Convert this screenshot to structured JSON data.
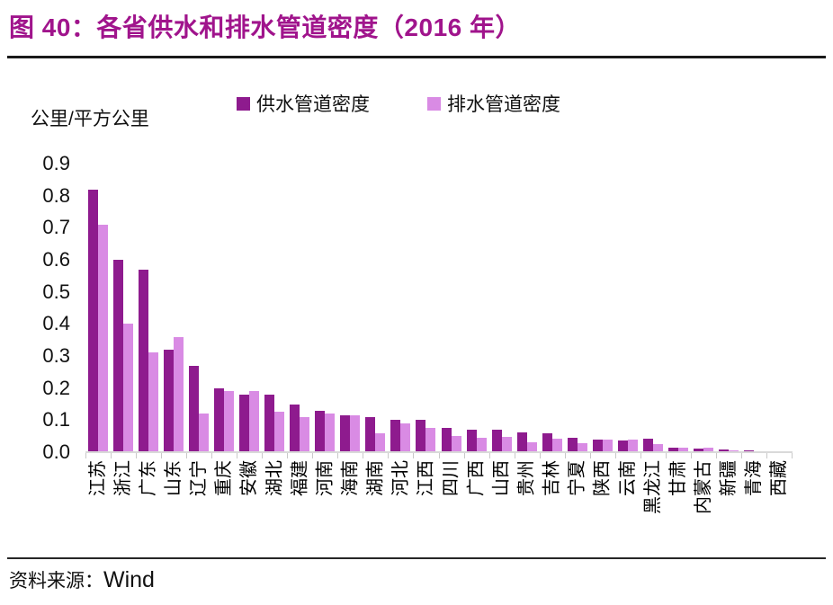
{
  "figure": {
    "title": "图 40：各省供水和排水管道密度（2016 年）",
    "unit_label": "公里/平方公里",
    "source": {
      "prefix": "资料来源：",
      "value": "Wind"
    }
  },
  "colors": {
    "title": "#a0148c",
    "supply_bar": "#8e1b8e",
    "drain_bar": "#d98be4",
    "divider": "#1a1a1a",
    "axis_line": "#d9d9d9",
    "axis_tick": "#c9c9c9"
  },
  "chart_data": {
    "type": "bar",
    "title": "各省供水和排水管道密度（2016 年）",
    "xlabel": "",
    "ylabel": "公里/平方公里",
    "ylim": [
      0,
      0.9
    ],
    "yticks": [
      0.0,
      0.1,
      0.2,
      0.3,
      0.4,
      0.5,
      0.6,
      0.7,
      0.8,
      0.9
    ],
    "grid": false,
    "legend_position": "top",
    "categories": [
      "江苏",
      "浙江",
      "广东",
      "山东",
      "辽宁",
      "重庆",
      "安徽",
      "湖北",
      "福建",
      "河南",
      "海南",
      "湖南",
      "河北",
      "江西",
      "四川",
      "广西",
      "山西",
      "贵州",
      "吉林",
      "宁夏",
      "陕西",
      "云南",
      "黑龙江",
      "甘肃",
      "内蒙古",
      "新疆",
      "青海",
      "西藏"
    ],
    "series": [
      {
        "name": "供水管道密度",
        "color": "#8e1b8e",
        "values": [
          0.82,
          0.6,
          0.57,
          0.32,
          0.27,
          0.2,
          0.18,
          0.18,
          0.15,
          0.13,
          0.115,
          0.11,
          0.1,
          0.1,
          0.075,
          0.07,
          0.07,
          0.062,
          0.058,
          0.046,
          0.039,
          0.037,
          0.042,
          0.015,
          0.012,
          0.008,
          0.005,
          0.002
        ]
      },
      {
        "name": "排水管道密度",
        "color": "#d98be4",
        "values": [
          0.71,
          0.4,
          0.31,
          0.36,
          0.12,
          0.19,
          0.19,
          0.125,
          0.11,
          0.12,
          0.115,
          0.06,
          0.09,
          0.075,
          0.05,
          0.045,
          0.048,
          0.032,
          0.042,
          0.029,
          0.04,
          0.038,
          0.024,
          0.014,
          0.013,
          0.006,
          0.004,
          0.002
        ]
      }
    ]
  }
}
